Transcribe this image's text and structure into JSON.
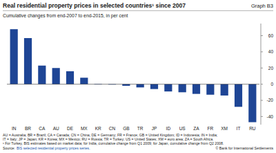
{
  "chart_data": {
    "type": "bar",
    "title": "Real residential property prices in selected countries¹ since 2007",
    "graph_label": "Graph B3",
    "subtitle": "Cumulative changes from end-2007 to end-2015, in per cent",
    "categories": [
      "IN",
      "BR",
      "CA",
      "AU",
      "DE",
      "MX",
      "KR",
      "CN",
      "GB",
      "TR",
      "JP",
      "ID",
      "US",
      "ZA",
      "FR",
      "XM",
      "IT",
      "RU"
    ],
    "values": [
      68,
      57,
      23,
      20,
      16,
      8,
      0.5,
      -0.5,
      -2,
      -4,
      -6,
      -9,
      -10,
      -12,
      -13,
      -14,
      -28,
      -47
    ],
    "color": "#1e4595",
    "ylim": [
      -50,
      75
    ],
    "yticks": [
      -40,
      -20,
      0,
      20,
      40,
      60
    ],
    "grid": false,
    "notes": [
      "AU = Australia; BR = Brazil; CA = Canada; CN = China; DE = Germany; FR = France; GB = United Kingdom; ID = Indonesia; IN = India;",
      "IT = Italy; JP = Japan; KR = Korea; MX = Mexico; RU = Russia; TR = Turkey; US = United States; XM = euro area; ZA = South Africa.",
      "¹ For Turkey, BIS estimates based on market data; for India, cumulative change from Q1 2009; for Japan, cumulative change from Q2 2008."
    ],
    "source_prefix": "Source:",
    "source": "BIS selected residential property prices series.",
    "copyright": "© Bank for International Settlements"
  }
}
